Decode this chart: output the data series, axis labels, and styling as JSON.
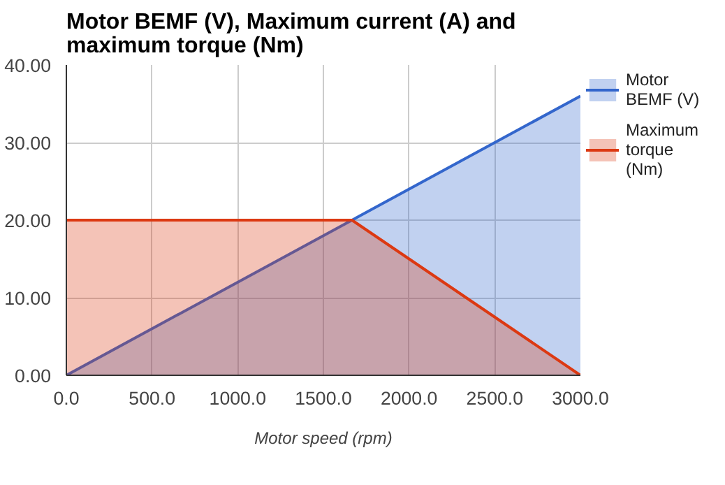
{
  "chart_data": {
    "type": "area",
    "title": "Motor BEMF (V), Maximum current (A) and maximum torque (Nm)",
    "xlabel": "Motor speed (rpm)",
    "series": [
      {
        "name": "Motor BEMF (V)",
        "color": "#3366cc",
        "x": [
          0,
          3000
        ],
        "values": [
          0,
          36
        ]
      },
      {
        "name": "Maximum torque (Nm)",
        "color": "#dc3912",
        "x": [
          0,
          1667,
          3000
        ],
        "values": [
          20,
          20,
          0
        ]
      }
    ],
    "xlim": [
      0,
      3000
    ],
    "ylim": [
      0,
      40
    ],
    "xticks": [
      {
        "value": 0,
        "label": "0.0"
      },
      {
        "value": 500,
        "label": "500.0"
      },
      {
        "value": 1000,
        "label": "1000.0"
      },
      {
        "value": 1500,
        "label": "1500.0"
      },
      {
        "value": 2000,
        "label": "2000.0"
      },
      {
        "value": 2500,
        "label": "2500.0"
      },
      {
        "value": 3000,
        "label": "3000.0"
      }
    ],
    "yticks": [
      {
        "value": 0,
        "label": "0.00"
      },
      {
        "value": 10,
        "label": "10.00"
      },
      {
        "value": 20,
        "label": "20.00"
      },
      {
        "value": 30,
        "label": "30.00"
      },
      {
        "value": 40,
        "label": "40.00"
      }
    ],
    "grid": true,
    "legend": "right"
  }
}
